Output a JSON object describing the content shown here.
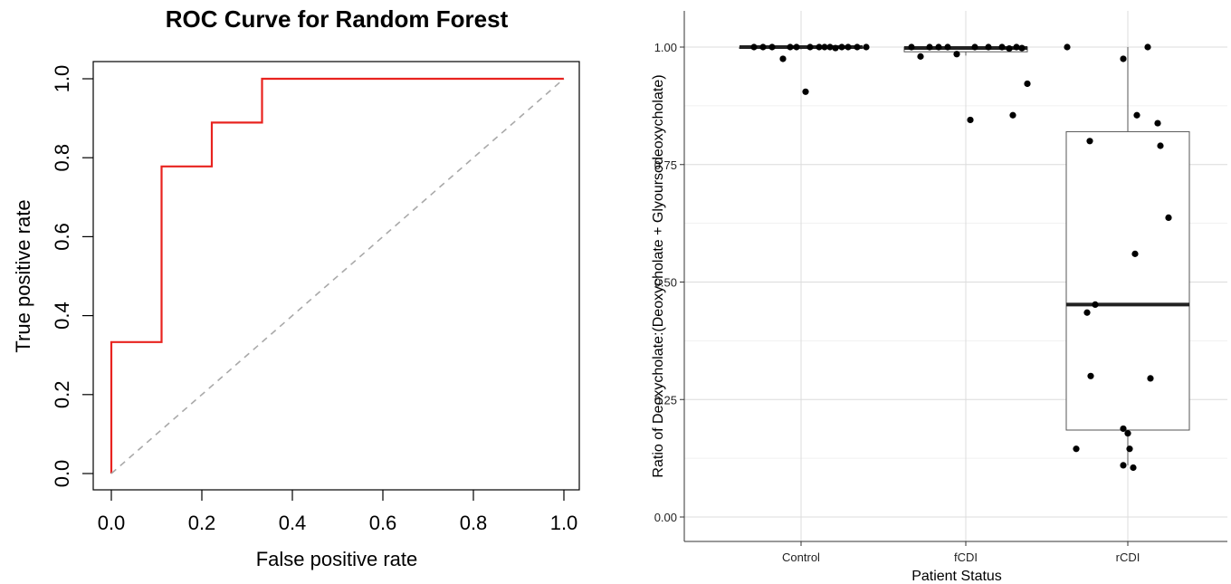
{
  "chart_data": [
    {
      "type": "line",
      "title": "ROC Curve for Random Forest",
      "xlabel": "False positive rate",
      "ylabel": "True positive rate",
      "xlim": [
        0,
        1
      ],
      "ylim": [
        0,
        1
      ],
      "x_ticks": [
        "0.0",
        "0.2",
        "0.4",
        "0.6",
        "0.8",
        "1.0"
      ],
      "y_ticks": [
        "0.0",
        "0.2",
        "0.4",
        "0.6",
        "0.8",
        "1.0"
      ],
      "grid": false,
      "series": [
        {
          "color": "#e8231f",
          "style": "solid",
          "x": [
            0,
            0,
            0.111,
            0.111,
            0.222,
            0.222,
            0.333,
            0.333,
            1.0
          ],
          "y": [
            0,
            0.333,
            0.333,
            0.778,
            0.778,
            0.889,
            0.889,
            1.0,
            1.0
          ]
        },
        {
          "color": "#a9a9a9",
          "style": "dashed",
          "x": [
            0,
            1
          ],
          "y": [
            0,
            1
          ]
        }
      ]
    },
    {
      "type": "box",
      "title": "",
      "xlabel": "Patient Status",
      "ylabel": "Ratio of Deoxycholate:(Deoxycholate + Glyoursodeoxycholate)",
      "categories": [
        "Control",
        "fCDI",
        "rCDI"
      ],
      "ylim": [
        -0.05,
        1.05
      ],
      "y_ticks": [
        "0.00",
        "0.25",
        "0.50",
        "0.75",
        "1.00"
      ],
      "grid": true,
      "boxes": [
        {
          "category": "Control",
          "q1": 0.998,
          "median": 1.0,
          "q3": 1.0,
          "whisker_low": 0.995,
          "whisker_high": 1.0
        },
        {
          "category": "fCDI",
          "q1": 0.99,
          "median": 0.998,
          "q3": 1.0,
          "whisker_low": 0.982,
          "whisker_high": 1.0
        },
        {
          "category": "rCDI",
          "q1": 0.185,
          "median": 0.452,
          "q3": 0.82,
          "whisker_low": 0.11,
          "whisker_high": 1.0
        }
      ],
      "points": [
        {
          "category": "Control",
          "jitter": -0.52,
          "value": 1.0
        },
        {
          "category": "Control",
          "jitter": -0.42,
          "value": 1.0
        },
        {
          "category": "Control",
          "jitter": -0.32,
          "value": 1.0
        },
        {
          "category": "Control",
          "jitter": -0.2,
          "value": 0.975
        },
        {
          "category": "Control",
          "jitter": -0.12,
          "value": 1.0
        },
        {
          "category": "Control",
          "jitter": -0.05,
          "value": 1.0
        },
        {
          "category": "Control",
          "jitter": 0.05,
          "value": 0.905
        },
        {
          "category": "Control",
          "jitter": 0.1,
          "value": 1.0
        },
        {
          "category": "Control",
          "jitter": 0.2,
          "value": 1.0
        },
        {
          "category": "Control",
          "jitter": 0.26,
          "value": 1.0
        },
        {
          "category": "Control",
          "jitter": 0.32,
          "value": 1.0
        },
        {
          "category": "Control",
          "jitter": 0.38,
          "value": 0.998
        },
        {
          "category": "Control",
          "jitter": 0.45,
          "value": 1.0
        },
        {
          "category": "Control",
          "jitter": 0.52,
          "value": 1.0
        },
        {
          "category": "Control",
          "jitter": 0.62,
          "value": 1.0
        },
        {
          "category": "Control",
          "jitter": 0.72,
          "value": 1.0
        },
        {
          "category": "fCDI",
          "jitter": -0.6,
          "value": 1.0
        },
        {
          "category": "fCDI",
          "jitter": -0.5,
          "value": 0.98
        },
        {
          "category": "fCDI",
          "jitter": -0.4,
          "value": 1.0
        },
        {
          "category": "fCDI",
          "jitter": -0.3,
          "value": 1.0
        },
        {
          "category": "fCDI",
          "jitter": -0.2,
          "value": 1.0
        },
        {
          "category": "fCDI",
          "jitter": -0.1,
          "value": 0.985
        },
        {
          "category": "fCDI",
          "jitter": 0.05,
          "value": 0.845
        },
        {
          "category": "fCDI",
          "jitter": 0.1,
          "value": 1.0
        },
        {
          "category": "fCDI",
          "jitter": 0.25,
          "value": 1.0
        },
        {
          "category": "fCDI",
          "jitter": 0.4,
          "value": 1.0
        },
        {
          "category": "fCDI",
          "jitter": 0.48,
          "value": 0.997
        },
        {
          "category": "fCDI",
          "jitter": 0.52,
          "value": 0.855
        },
        {
          "category": "fCDI",
          "jitter": 0.56,
          "value": 1.0
        },
        {
          "category": "fCDI",
          "jitter": 0.62,
          "value": 0.998
        },
        {
          "category": "fCDI",
          "jitter": 0.68,
          "value": 0.922
        },
        {
          "category": "rCDI",
          "jitter": -0.67,
          "value": 1.0
        },
        {
          "category": "rCDI",
          "jitter": -0.57,
          "value": 0.145
        },
        {
          "category": "rCDI",
          "jitter": -0.45,
          "value": 0.435
        },
        {
          "category": "rCDI",
          "jitter": -0.42,
          "value": 0.8
        },
        {
          "category": "rCDI",
          "jitter": -0.41,
          "value": 0.3
        },
        {
          "category": "rCDI",
          "jitter": -0.36,
          "value": 0.452
        },
        {
          "category": "rCDI",
          "jitter": -0.05,
          "value": 0.975
        },
        {
          "category": "rCDI",
          "jitter": -0.05,
          "value": 0.11
        },
        {
          "category": "rCDI",
          "jitter": -0.05,
          "value": 0.188
        },
        {
          "category": "rCDI",
          "jitter": 0.0,
          "value": 0.178
        },
        {
          "category": "rCDI",
          "jitter": 0.02,
          "value": 0.145
        },
        {
          "category": "rCDI",
          "jitter": 0.06,
          "value": 0.105
        },
        {
          "category": "rCDI",
          "jitter": 0.08,
          "value": 0.56
        },
        {
          "category": "rCDI",
          "jitter": 0.1,
          "value": 0.855
        },
        {
          "category": "rCDI",
          "jitter": 0.22,
          "value": 1.0
        },
        {
          "category": "rCDI",
          "jitter": 0.25,
          "value": 0.295
        },
        {
          "category": "rCDI",
          "jitter": 0.33,
          "value": 0.838
        },
        {
          "category": "rCDI",
          "jitter": 0.36,
          "value": 0.79
        },
        {
          "category": "rCDI",
          "jitter": 0.45,
          "value": 0.637
        }
      ]
    }
  ]
}
